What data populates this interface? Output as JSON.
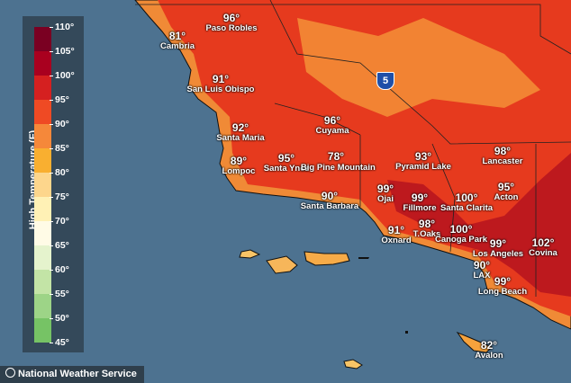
{
  "legend": {
    "title": "High Temperature (F)",
    "ticks": [
      "110°",
      "105°",
      "100°",
      "95°",
      "90°",
      "85°",
      "80°",
      "75°",
      "70°",
      "65°",
      "60°",
      "55°",
      "50°",
      "45°"
    ],
    "band_colors": [
      "#7a0022",
      "#a9001f",
      "#d52020",
      "#ef4a24",
      "#f5883a",
      "#f9af30",
      "#fdd68c",
      "#fff1b5",
      "#fffbe6",
      "#e5f3cd",
      "#c3e4a6",
      "#9dd487",
      "#76c365"
    ]
  },
  "colors": {
    "ocean": "#4d7290",
    "land": "#e83a1e",
    "hot": "#b0121e",
    "coast": "#f79a3a",
    "island": "#f8c466"
  },
  "highway": {
    "label": "5"
  },
  "cities": [
    {
      "name": "Paso Robles",
      "temp": "96°"
    },
    {
      "name": "Cambria",
      "temp": "81°"
    },
    {
      "name": "San Luis Obispo",
      "temp": "91°"
    },
    {
      "name": "Santa Maria",
      "temp": "92°"
    },
    {
      "name": "Cuyama",
      "temp": "96°"
    },
    {
      "name": "Lompoc",
      "temp": "89°"
    },
    {
      "name": "Santa Ynez",
      "temp": "95°"
    },
    {
      "name": "Big Pine Mountain",
      "temp": "78°"
    },
    {
      "name": "Santa Barbara",
      "temp": "90°"
    },
    {
      "name": "Pyramid Lake",
      "temp": "93°"
    },
    {
      "name": "Lancaster",
      "temp": "98°"
    },
    {
      "name": "Ojai",
      "temp": "99°"
    },
    {
      "name": "Fillmore",
      "temp": "99°"
    },
    {
      "name": "Santa Clarita",
      "temp": "100°"
    },
    {
      "name": "Acton",
      "temp": "95°"
    },
    {
      "name": "Oxnard",
      "temp": "91°"
    },
    {
      "name": "T.Oaks",
      "temp": "98°"
    },
    {
      "name": "Canoga Park",
      "temp": "100°"
    },
    {
      "name": "Los Angeles",
      "temp": "99°"
    },
    {
      "name": "Covina",
      "temp": "102°"
    },
    {
      "name": "LAX",
      "temp": "90°"
    },
    {
      "name": "Long Beach",
      "temp": "99°"
    },
    {
      "name": "Avalon",
      "temp": "82°"
    }
  ],
  "credit": "National Weather Service"
}
